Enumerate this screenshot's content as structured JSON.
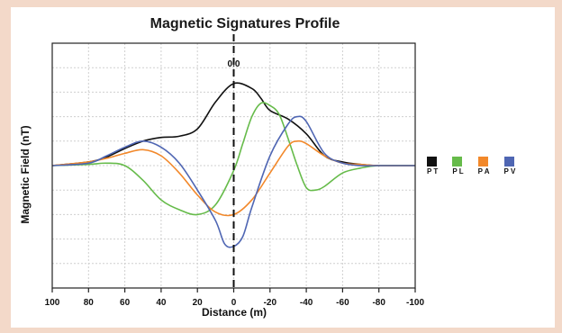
{
  "chart_data": {
    "type": "line",
    "title": "Magnetic Signatures Profile",
    "xlabel": "Distance (m)",
    "ylabel": "Magnetic Field (nT)",
    "xlim": [
      100,
      -100
    ],
    "x_reversed": true,
    "xticks": [
      "100",
      "80",
      "60",
      "40",
      "20",
      "0",
      "-20",
      "-40",
      "-60",
      "-80",
      "-100"
    ],
    "ylim": [
      -100,
      100
    ],
    "grid": true,
    "legend_position": "right",
    "annotation": "0.0",
    "series": [
      {
        "name": "T",
        "legend_label": "P T",
        "color": "#111111",
        "x": [
          100,
          80,
          70,
          60,
          50,
          40,
          30,
          20,
          10,
          0,
          -10,
          -15,
          -20,
          -30,
          -40,
          -50,
          -60,
          -70,
          -80,
          -100
        ],
        "y": [
          0,
          3,
          7,
          14,
          20,
          23,
          24,
          30,
          52,
          67,
          63,
          55,
          45,
          38,
          26,
          8,
          3,
          1,
          0,
          0
        ]
      },
      {
        "name": "L",
        "legend_label": "P L",
        "color": "#66bb4a",
        "x": [
          100,
          80,
          70,
          60,
          50,
          40,
          30,
          20,
          10,
          0,
          -5,
          -10,
          -15,
          -20,
          -25,
          -30,
          -35,
          -40,
          -45,
          -50,
          -60,
          -70,
          -80,
          -100
        ],
        "y": [
          0,
          1,
          2,
          0,
          -12,
          -28,
          -36,
          -40,
          -32,
          -4,
          18,
          40,
          51,
          49,
          42,
          22,
          0,
          -18,
          -20,
          -17,
          -6,
          -2,
          0,
          0
        ]
      },
      {
        "name": "A",
        "legend_label": "P A",
        "color": "#f2882a",
        "x": [
          100,
          80,
          70,
          60,
          50,
          40,
          30,
          20,
          10,
          0,
          -10,
          -20,
          -30,
          -35,
          -40,
          -50,
          -60,
          -70,
          -80,
          -100
        ],
        "y": [
          0,
          3,
          6,
          10,
          13,
          8,
          -6,
          -24,
          -38,
          -40,
          -28,
          -6,
          16,
          20,
          18,
          8,
          2,
          1,
          0,
          0
        ]
      },
      {
        "name": "V",
        "legend_label": "P V",
        "color": "#4f66b3",
        "x": [
          100,
          80,
          70,
          60,
          50,
          40,
          30,
          20,
          10,
          5,
          0,
          -5,
          -10,
          -20,
          -30,
          -35,
          -40,
          -50,
          -60,
          -70,
          -80,
          -100
        ],
        "y": [
          0,
          2,
          8,
          15,
          20,
          15,
          2,
          -20,
          -45,
          -64,
          -66,
          -58,
          -34,
          8,
          34,
          40,
          36,
          10,
          2,
          0,
          0,
          0
        ]
      }
    ]
  }
}
